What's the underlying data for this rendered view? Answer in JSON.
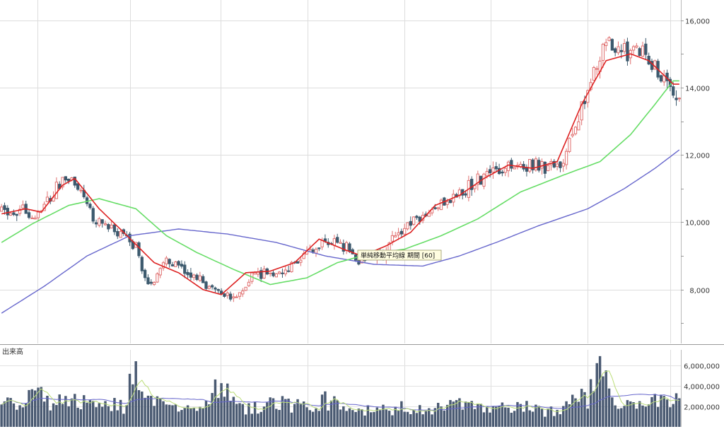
{
  "chart_data": [
    {
      "type": "candlestick",
      "title": "",
      "ylim": [
        6400,
        16600
      ],
      "yticks": [
        {
          "value": 16000,
          "label": "16,000"
        },
        {
          "value": 14000,
          "label": "14,000"
        },
        {
          "value": 12000,
          "label": "12,000"
        },
        {
          "value": 10000,
          "label": "10,000"
        },
        {
          "value": 8000,
          "label": "8,000"
        }
      ],
      "grid": true,
      "colors": {
        "up": "#e07070",
        "down": "#3d5a6e",
        "ma_short": "#dd2222",
        "ma_mid": "#66dd66",
        "ma_long": "#6666cc"
      },
      "tooltip": "単純移動平均線 期間 [60]",
      "ma_short_key": [
        [
          0,
          10250
        ],
        [
          8,
          10400
        ],
        [
          13,
          10300
        ],
        [
          20,
          11100
        ],
        [
          24,
          11300
        ],
        [
          32,
          10400
        ],
        [
          40,
          9700
        ],
        [
          50,
          8800
        ],
        [
          58,
          8500
        ],
        [
          66,
          8000
        ],
        [
          72,
          7850
        ],
        [
          80,
          8500
        ],
        [
          88,
          8550
        ],
        [
          96,
          8800
        ],
        [
          104,
          9500
        ],
        [
          112,
          9200
        ],
        [
          118,
          9000
        ],
        [
          126,
          9300
        ],
        [
          134,
          9700
        ],
        [
          142,
          10500
        ],
        [
          150,
          10800
        ],
        [
          158,
          11300
        ],
        [
          166,
          11700
        ],
        [
          174,
          11600
        ],
        [
          182,
          11800
        ],
        [
          190,
          13500
        ],
        [
          198,
          14800
        ],
        [
          206,
          15000
        ],
        [
          212,
          14800
        ],
        [
          220,
          14100
        ]
      ],
      "ma_mid_key": [
        [
          0,
          9400
        ],
        [
          10,
          9950
        ],
        [
          22,
          10500
        ],
        [
          32,
          10700
        ],
        [
          44,
          10400
        ],
        [
          54,
          9600
        ],
        [
          64,
          9100
        ],
        [
          76,
          8600
        ],
        [
          88,
          8150
        ],
        [
          100,
          8350
        ],
        [
          110,
          8800
        ],
        [
          120,
          9050
        ],
        [
          132,
          9200
        ],
        [
          144,
          9600
        ],
        [
          156,
          10100
        ],
        [
          170,
          10900
        ],
        [
          184,
          11400
        ],
        [
          196,
          11800
        ],
        [
          206,
          12600
        ],
        [
          214,
          13500
        ],
        [
          220,
          14200
        ]
      ],
      "ma_long_key": [
        [
          0,
          7300
        ],
        [
          14,
          8100
        ],
        [
          28,
          9000
        ],
        [
          42,
          9600
        ],
        [
          58,
          9800
        ],
        [
          74,
          9650
        ],
        [
          90,
          9400
        ],
        [
          106,
          9000
        ],
        [
          122,
          8750
        ],
        [
          138,
          8700
        ],
        [
          150,
          9000
        ],
        [
          162,
          9400
        ],
        [
          176,
          9900
        ],
        [
          192,
          10400
        ],
        [
          204,
          11000
        ],
        [
          214,
          11600
        ],
        [
          222,
          12150
        ]
      ],
      "price_key": [
        [
          0,
          10350
        ],
        [
          6,
          10400
        ],
        [
          12,
          10200
        ],
        [
          20,
          11200
        ],
        [
          24,
          11300
        ],
        [
          30,
          10200
        ],
        [
          36,
          9800
        ],
        [
          44,
          9300
        ],
        [
          48,
          8000
        ],
        [
          54,
          8900
        ],
        [
          62,
          8400
        ],
        [
          70,
          7900
        ],
        [
          76,
          7700
        ],
        [
          82,
          8400
        ],
        [
          90,
          8500
        ],
        [
          98,
          8900
        ],
        [
          106,
          9500
        ],
        [
          112,
          9300
        ],
        [
          118,
          8800
        ],
        [
          124,
          9000
        ],
        [
          132,
          9800
        ],
        [
          140,
          10300
        ],
        [
          148,
          10800
        ],
        [
          156,
          11200
        ],
        [
          164,
          11600
        ],
        [
          172,
          11700
        ],
        [
          178,
          11600
        ],
        [
          184,
          11800
        ],
        [
          188,
          13000
        ],
        [
          192,
          14000
        ],
        [
          198,
          15400
        ],
        [
          204,
          15000
        ],
        [
          210,
          15200
        ],
        [
          214,
          14700
        ],
        [
          218,
          14000
        ],
        [
          220,
          13800
        ]
      ]
    },
    {
      "type": "bar",
      "title": "出来高",
      "ylim": [
        0,
        7000000
      ],
      "yticks": [
        {
          "value": 6000000,
          "label": "6,000,000"
        },
        {
          "value": 4000000,
          "label": "4,000,000"
        },
        {
          "value": 2000000,
          "label": "2,000,000"
        }
      ],
      "grid": true,
      "colors": {
        "bar": "#4a5a72",
        "ma_mid": "#bbdd77",
        "ma_long": "#6666cc"
      },
      "volume_key": [
        [
          0,
          2700
        ],
        [
          8,
          2300
        ],
        [
          10,
          4200
        ],
        [
          14,
          2800
        ],
        [
          20,
          2600
        ],
        [
          26,
          2700
        ],
        [
          32,
          2500
        ],
        [
          40,
          2300
        ],
        [
          44,
          6100
        ],
        [
          48,
          2600
        ],
        [
          56,
          2100
        ],
        [
          66,
          2500
        ],
        [
          70,
          4300
        ],
        [
          80,
          2100
        ],
        [
          90,
          2600
        ],
        [
          100,
          2300
        ],
        [
          106,
          3000
        ],
        [
          112,
          1900
        ],
        [
          122,
          1700
        ],
        [
          132,
          2100
        ],
        [
          140,
          2000
        ],
        [
          150,
          2300
        ],
        [
          160,
          1800
        ],
        [
          170,
          2200
        ],
        [
          180,
          1700
        ],
        [
          186,
          2800
        ],
        [
          192,
          3200
        ],
        [
          196,
          5600
        ],
        [
          202,
          2500
        ],
        [
          210,
          2200
        ],
        [
          216,
          3000
        ],
        [
          220,
          2800
        ]
      ]
    }
  ]
}
